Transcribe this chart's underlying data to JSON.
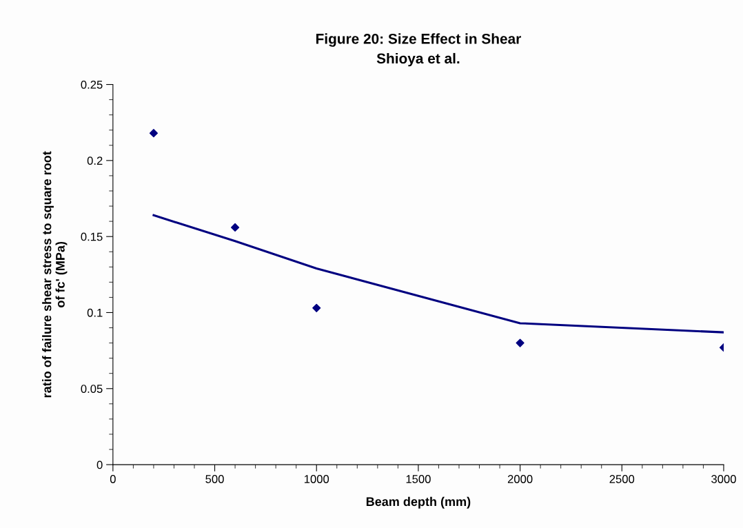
{
  "chart_data": {
    "type": "scatter",
    "title": "Figure 20: Size Effect in Shear\nShioya et al.",
    "xlabel": "Beam depth (mm)",
    "ylabel": "ratio of failure shear stress to square root\nof fc' (MPa)",
    "series": [
      {
        "color": "#000080",
        "marker": "diamond",
        "x": [
          200,
          600,
          1000,
          2000,
          3000
        ],
        "values": [
          0.218,
          0.156,
          0.103,
          0.08,
          0.077
        ]
      },
      {
        "type": "line",
        "color": "#000080",
        "marker": "none",
        "x": [
          200,
          600,
          1000,
          2000,
          3000
        ],
        "values": [
          0.164,
          0.147,
          0.129,
          0.093,
          0.087
        ]
      }
    ],
    "xlim": [
      0,
      3000
    ],
    "xticks": [
      0,
      500,
      1000,
      1500,
      2000,
      2500,
      3000
    ],
    "ylim": [
      0,
      0.25
    ],
    "yticks": [
      0,
      0.05,
      0.1,
      0.15,
      0.2,
      0.25
    ],
    "grid": false,
    "legend": false
  }
}
